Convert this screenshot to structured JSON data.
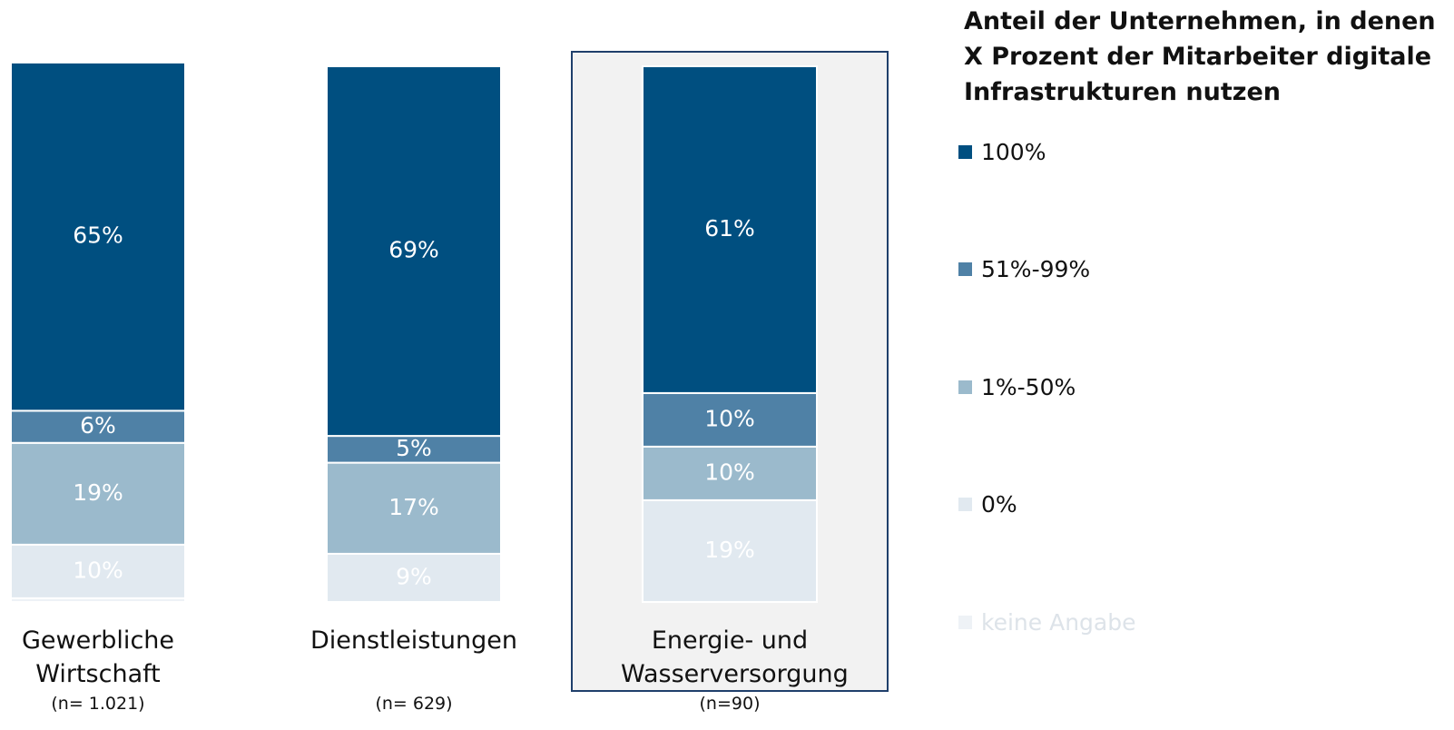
{
  "chart_data": {
    "type": "stacked_bar",
    "legend_title": "Anteil der Unternehmen, in denen X Prozent der Mitarbeiter digitale Infrastrukturen nutzen",
    "categories": [
      "Gewerbliche Wirtschaft",
      "Dienstleistungen",
      "Energie- und Wasserversorgung"
    ],
    "category_notes": [
      "(n= 1.021)",
      "(n= 629)",
      "(n=90)"
    ],
    "ylim": [
      0,
      100
    ],
    "legend": "right",
    "series": [
      {
        "name": "100%",
        "color": "#004f80",
        "label_color": "#ffffff",
        "values": [
          65,
          69,
          61
        ],
        "value_labels": [
          "65%",
          "69%",
          "61%"
        ]
      },
      {
        "name": "51%-99%",
        "color": "#4f81a6",
        "label_color": "#ffffff",
        "values": [
          6,
          5,
          10
        ],
        "value_labels": [
          "6%",
          "5%",
          "10%"
        ]
      },
      {
        "name": "1%-50%",
        "color": "#9bbacc",
        "label_color": "#ffffff",
        "values": [
          19,
          17,
          10
        ],
        "value_labels": [
          "19%",
          "17%",
          "10%"
        ]
      },
      {
        "name": "0%",
        "color": "#e1e9f0",
        "label_color": "#ffffff",
        "values": [
          10,
          9,
          19
        ],
        "value_labels": [
          "10%",
          "9%",
          "19%"
        ]
      },
      {
        "name": "keine Angabe",
        "color": "#eef2f6",
        "label_color": "#dfe6ec",
        "values": [
          0.7,
          0,
          0
        ]
      }
    ]
  }
}
